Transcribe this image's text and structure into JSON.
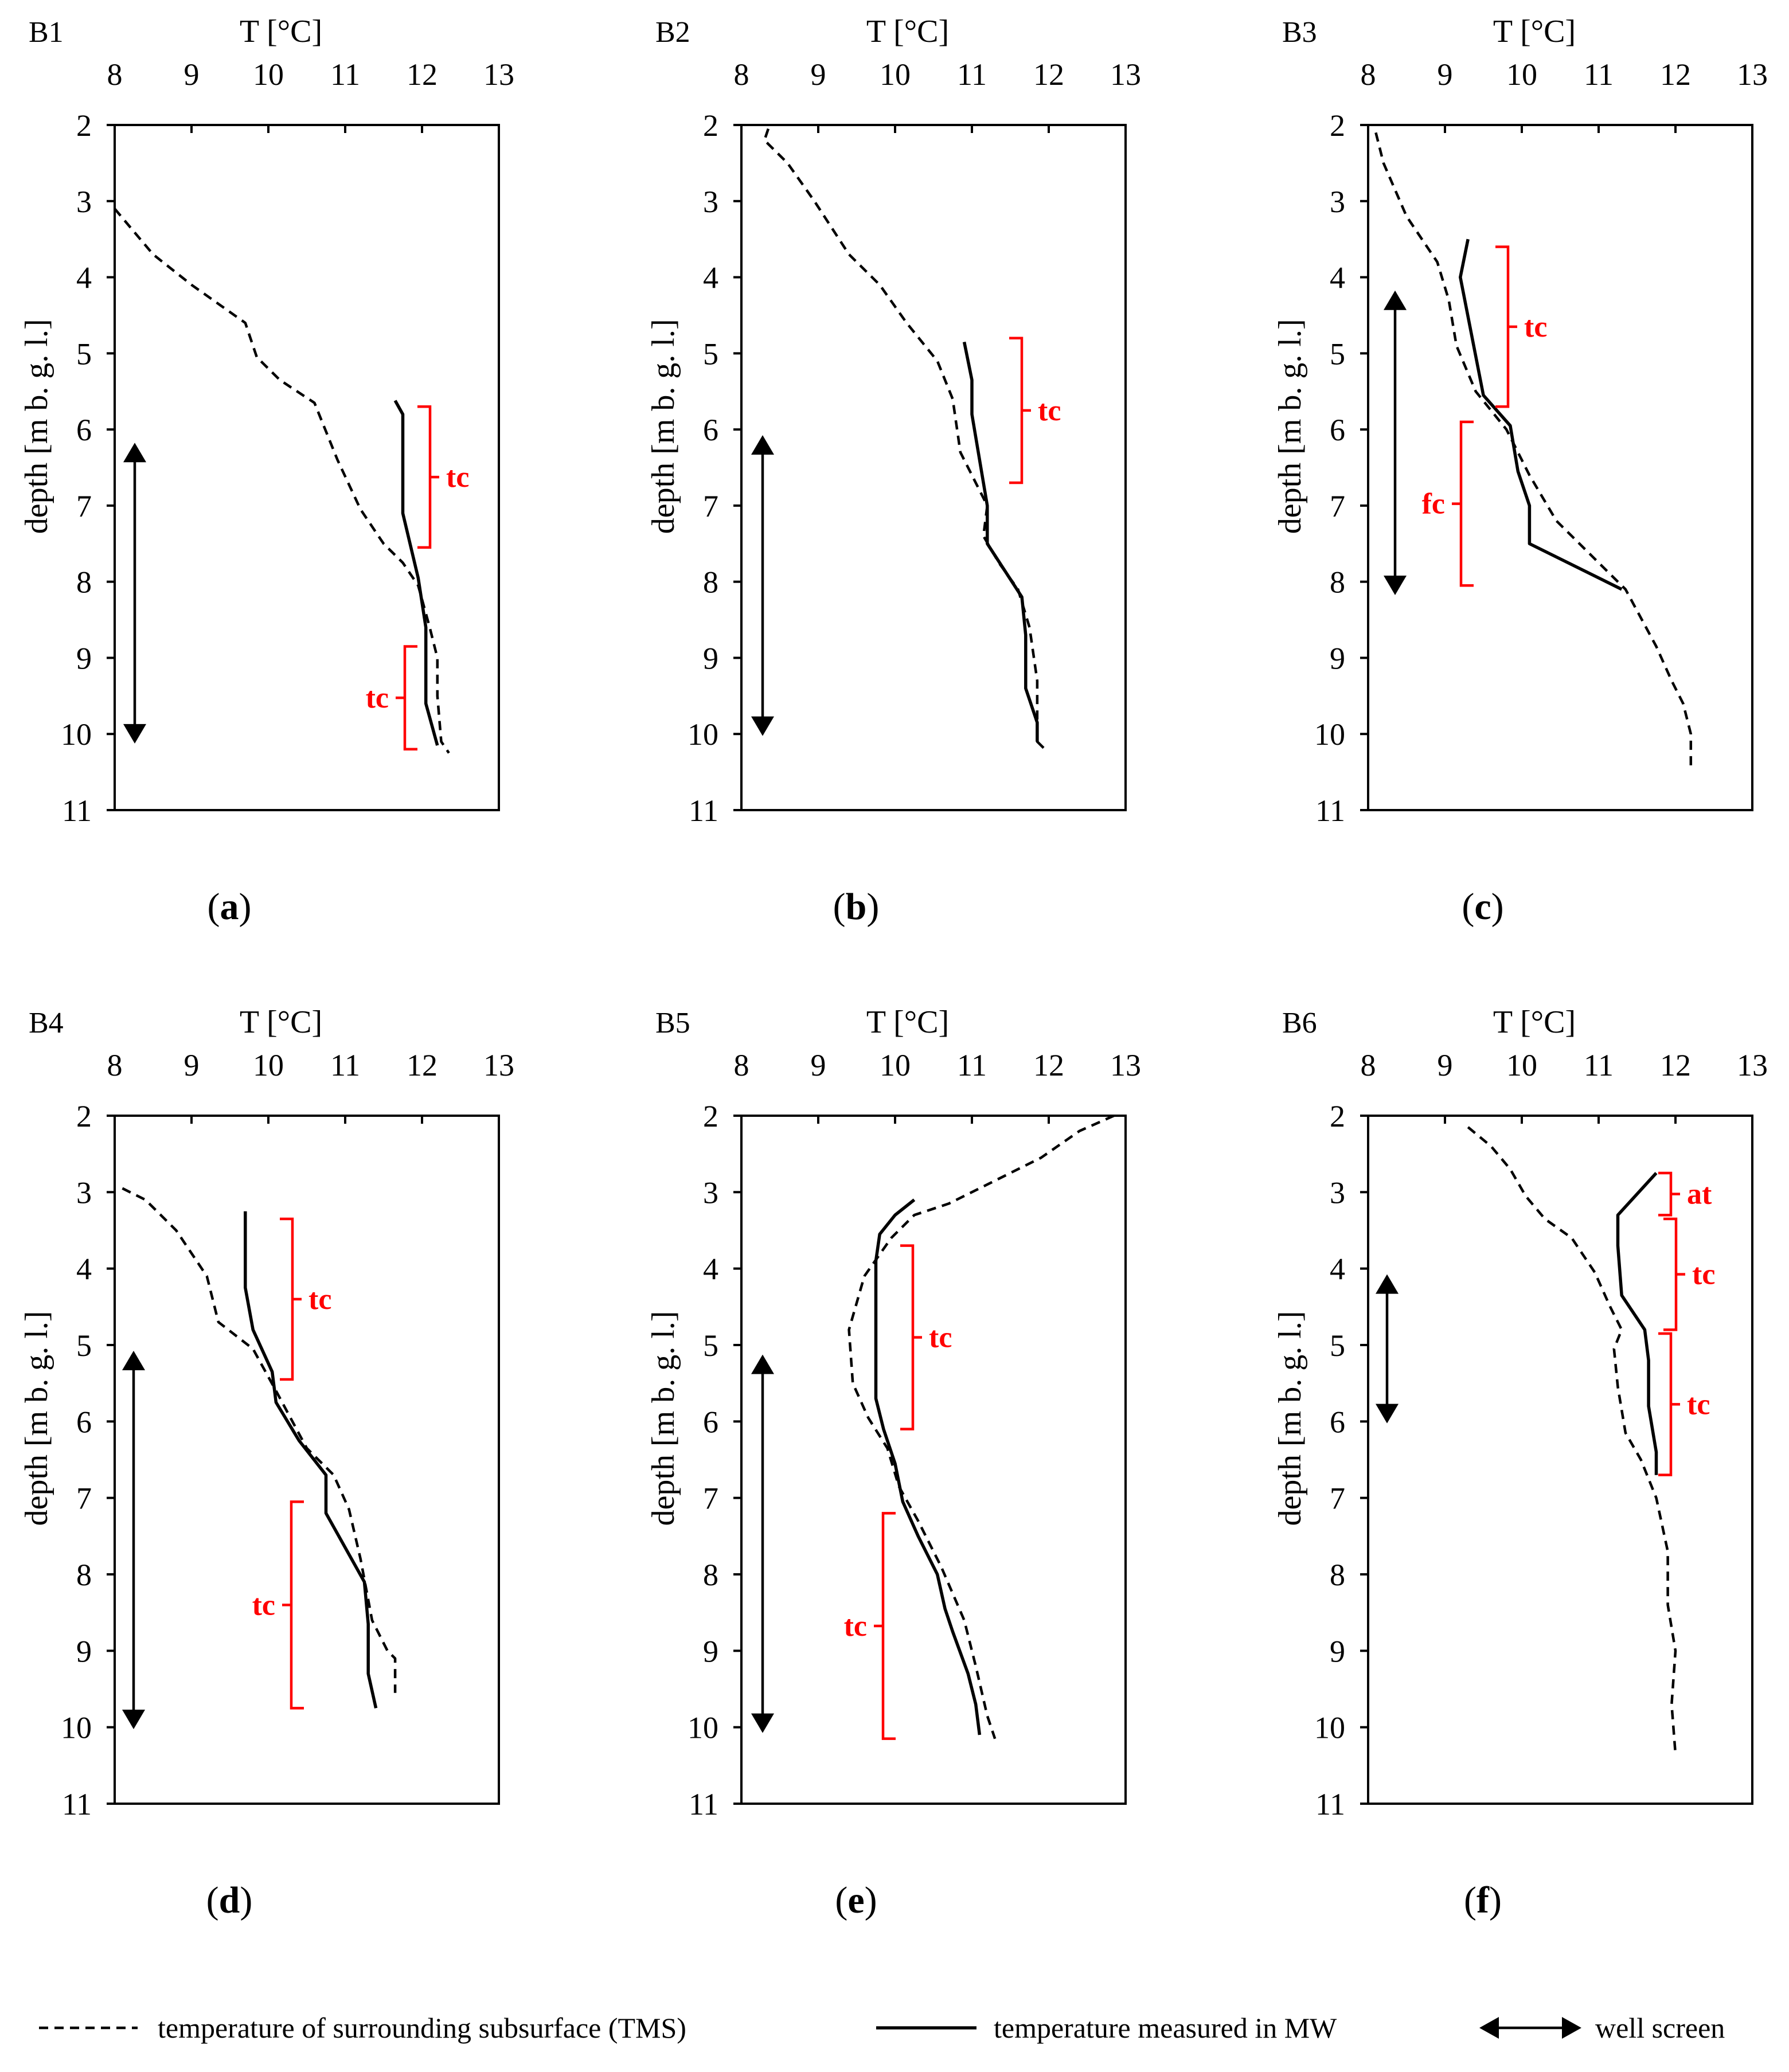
{
  "chart_data": [
    {
      "type": "line",
      "panel": "B1",
      "caption": "a",
      "xlabel": "T [°C]",
      "ylabel": "depth [m  b. g. l.]",
      "xlim": [
        8,
        13
      ],
      "ylim": [
        2,
        11
      ],
      "xticks": [
        "8",
        "9",
        "10",
        "11",
        "12",
        "13"
      ],
      "yticks": [
        "2",
        "3",
        "4",
        "5",
        "6",
        "7",
        "8",
        "9",
        "10",
        "11"
      ],
      "series": [
        {
          "name": "temperature of surrounding subsurface (TMS)",
          "style": "dashed",
          "points": [
            [
              8.0,
              3.1
            ],
            [
              8.5,
              3.7
            ],
            [
              9.0,
              4.1
            ],
            [
              9.7,
              4.6
            ],
            [
              9.85,
              5.05
            ],
            [
              10.15,
              5.35
            ],
            [
              10.6,
              5.65
            ],
            [
              10.9,
              6.4
            ],
            [
              11.2,
              7.05
            ],
            [
              11.5,
              7.5
            ],
            [
              11.75,
              7.75
            ],
            [
              11.95,
              8.05
            ],
            [
              12.1,
              8.6
            ],
            [
              12.2,
              9.0
            ],
            [
              12.2,
              9.5
            ],
            [
              12.25,
              10.1
            ],
            [
              12.35,
              10.25
            ]
          ]
        },
        {
          "name": "temperature measured in MW",
          "style": "solid",
          "points": [
            [
              11.65,
              5.62
            ],
            [
              11.75,
              5.8
            ],
            [
              11.75,
              7.1
            ],
            [
              11.95,
              7.95
            ],
            [
              12.05,
              8.6
            ],
            [
              12.05,
              9.6
            ],
            [
              12.2,
              10.15
            ]
          ]
        }
      ],
      "well_screen": [
        6.25,
        10.05
      ],
      "annotations": [
        {
          "label": "tc",
          "range": [
            5.7,
            7.55
          ],
          "side": "right"
        },
        {
          "label": "tc",
          "range": [
            8.85,
            10.2
          ],
          "side": "left"
        }
      ]
    },
    {
      "type": "line",
      "panel": "B2",
      "caption": "b",
      "xlabel": "T [°C]",
      "ylabel": "depth [m  b. g. l.]",
      "xlim": [
        8,
        13
      ],
      "ylim": [
        2,
        11
      ],
      "xticks": [
        "8",
        "9",
        "10",
        "11",
        "12",
        "13"
      ],
      "yticks": [
        "2",
        "3",
        "4",
        "5",
        "6",
        "7",
        "8",
        "9",
        "10",
        "11"
      ],
      "series": [
        {
          "name": "temperature of surrounding subsurface (TMS)",
          "style": "dashed",
          "points": [
            [
              8.35,
              2.05
            ],
            [
              8.3,
              2.2
            ],
            [
              8.6,
              2.5
            ],
            [
              8.95,
              3.0
            ],
            [
              9.4,
              3.7
            ],
            [
              9.8,
              4.1
            ],
            [
              10.15,
              4.6
            ],
            [
              10.55,
              5.1
            ],
            [
              10.75,
              5.6
            ],
            [
              10.85,
              6.3
            ],
            [
              11.05,
              6.7
            ],
            [
              11.2,
              7.0
            ],
            [
              11.15,
              7.4
            ],
            [
              11.35,
              7.75
            ],
            [
              11.6,
              8.1
            ],
            [
              11.75,
              8.6
            ],
            [
              11.85,
              9.3
            ],
            [
              11.85,
              10.1
            ],
            [
              11.95,
              10.2
            ]
          ]
        },
        {
          "name": "temperature measured in MW",
          "style": "solid",
          "points": [
            [
              10.9,
              4.85
            ],
            [
              11.0,
              5.35
            ],
            [
              11.0,
              5.8
            ],
            [
              11.2,
              7.0
            ],
            [
              11.2,
              7.5
            ],
            [
              11.65,
              8.2
            ],
            [
              11.7,
              8.7
            ],
            [
              11.7,
              9.4
            ],
            [
              11.85,
              9.85
            ],
            [
              11.85,
              10.1
            ]
          ]
        }
      ],
      "well_screen": [
        6.15,
        9.95
      ],
      "annotations": [
        {
          "label": "tc",
          "range": [
            4.8,
            6.7
          ],
          "side": "right"
        }
      ]
    },
    {
      "type": "line",
      "panel": "B3",
      "caption": "c",
      "xlabel": "T [°C]",
      "ylabel": "depth [m  b. g. l.]",
      "xlim": [
        8,
        13
      ],
      "ylim": [
        2,
        11
      ],
      "xticks": [
        "8",
        "9",
        "10",
        "11",
        "12",
        "13"
      ],
      "yticks": [
        "2",
        "3",
        "4",
        "5",
        "6",
        "7",
        "8",
        "9",
        "10",
        "11"
      ],
      "series": [
        {
          "name": "temperature of surrounding subsurface (TMS)",
          "style": "dashed",
          "points": [
            [
              8.1,
              2.1
            ],
            [
              8.2,
              2.5
            ],
            [
              8.5,
              3.2
            ],
            [
              8.9,
              3.8
            ],
            [
              9.05,
              4.3
            ],
            [
              9.15,
              4.9
            ],
            [
              9.4,
              5.5
            ],
            [
              9.8,
              6.0
            ],
            [
              10.1,
              6.6
            ],
            [
              10.45,
              7.2
            ],
            [
              10.95,
              7.7
            ],
            [
              11.35,
              8.1
            ],
            [
              11.75,
              8.85
            ],
            [
              11.95,
              9.3
            ],
            [
              12.1,
              9.6
            ],
            [
              12.2,
              10.0
            ],
            [
              12.2,
              10.45
            ]
          ]
        },
        {
          "name": "temperature measured in MW",
          "style": "solid",
          "points": [
            [
              9.3,
              3.5
            ],
            [
              9.2,
              4.0
            ],
            [
              9.5,
              5.55
            ],
            [
              9.85,
              5.95
            ],
            [
              9.95,
              6.55
            ],
            [
              10.1,
              7.0
            ],
            [
              10.1,
              7.5
            ],
            [
              11.3,
              8.1
            ]
          ]
        }
      ],
      "well_screen": [
        4.25,
        8.1
      ],
      "annotations": [
        {
          "label": "tc",
          "range": [
            3.6,
            5.7
          ],
          "side": "right"
        },
        {
          "label": "fc",
          "range": [
            5.9,
            8.05
          ],
          "side": "left"
        }
      ]
    },
    {
      "type": "line",
      "panel": "B4",
      "caption": "d",
      "xlabel": "T [°C]",
      "ylabel": "depth [m  b. g. l.]",
      "xlim": [
        8,
        13
      ],
      "ylim": [
        2,
        11
      ],
      "xticks": [
        "8",
        "9",
        "10",
        "11",
        "12",
        "13"
      ],
      "yticks": [
        "2",
        "3",
        "4",
        "5",
        "6",
        "7",
        "8",
        "9",
        "10",
        "11"
      ],
      "series": [
        {
          "name": "temperature of surrounding subsurface (TMS)",
          "style": "dashed",
          "points": [
            [
              8.1,
              2.95
            ],
            [
              8.4,
              3.1
            ],
            [
              8.8,
              3.5
            ],
            [
              9.2,
              4.1
            ],
            [
              9.35,
              4.7
            ],
            [
              9.8,
              5.05
            ],
            [
              10.1,
              5.6
            ],
            [
              10.5,
              6.35
            ],
            [
              10.85,
              6.7
            ],
            [
              11.05,
              7.15
            ],
            [
              11.2,
              7.8
            ],
            [
              11.35,
              8.6
            ],
            [
              11.55,
              9.0
            ],
            [
              11.65,
              9.1
            ],
            [
              11.65,
              9.55
            ]
          ]
        },
        {
          "name": "temperature measured in MW",
          "style": "solid",
          "points": [
            [
              9.7,
              3.25
            ],
            [
              9.7,
              4.25
            ],
            [
              9.8,
              4.8
            ],
            [
              10.05,
              5.35
            ],
            [
              10.1,
              5.75
            ],
            [
              10.4,
              6.25
            ],
            [
              10.75,
              6.7
            ],
            [
              10.75,
              7.2
            ],
            [
              11.25,
              8.1
            ],
            [
              11.3,
              8.65
            ],
            [
              11.3,
              9.3
            ],
            [
              11.4,
              9.75
            ]
          ]
        }
      ],
      "well_screen": [
        5.15,
        9.95
      ],
      "annotations": [
        {
          "label": "tc",
          "range": [
            3.35,
            5.45
          ],
          "side": "right"
        },
        {
          "label": "tc",
          "range": [
            7.05,
            9.75
          ],
          "side": "left"
        }
      ]
    },
    {
      "type": "line",
      "panel": "B5",
      "caption": "e",
      "xlabel": "T [°C]",
      "ylabel": "depth [m  b. g. l.]",
      "xlim": [
        8,
        13
      ],
      "ylim": [
        2,
        11
      ],
      "xticks": [
        "8",
        "9",
        "10",
        "11",
        "12",
        "13"
      ],
      "yticks": [
        "2",
        "3",
        "4",
        "5",
        "6",
        "7",
        "8",
        "9",
        "10",
        "11"
      ],
      "series": [
        {
          "name": "temperature of surrounding subsurface (TMS)",
          "style": "dashed",
          "points": [
            [
              12.85,
              2.0
            ],
            [
              12.4,
              2.2
            ],
            [
              11.9,
              2.55
            ],
            [
              11.2,
              2.9
            ],
            [
              10.7,
              3.15
            ],
            [
              10.25,
              3.3
            ],
            [
              9.95,
              3.6
            ],
            [
              9.6,
              4.1
            ],
            [
              9.4,
              4.8
            ],
            [
              9.45,
              5.5
            ],
            [
              9.65,
              5.95
            ],
            [
              9.9,
              6.35
            ],
            [
              10.05,
              6.85
            ],
            [
              10.3,
              7.3
            ],
            [
              10.6,
              7.9
            ],
            [
              10.9,
              8.6
            ],
            [
              11.05,
              9.2
            ],
            [
              11.2,
              9.85
            ],
            [
              11.3,
              10.15
            ]
          ]
        },
        {
          "name": "temperature measured in MW",
          "style": "solid",
          "points": [
            [
              10.25,
              3.1
            ],
            [
              10.0,
              3.3
            ],
            [
              9.8,
              3.55
            ],
            [
              9.75,
              3.9
            ],
            [
              9.75,
              4.5
            ],
            [
              9.75,
              5.7
            ],
            [
              9.85,
              6.1
            ],
            [
              10.0,
              6.55
            ],
            [
              10.1,
              7.05
            ],
            [
              10.3,
              7.5
            ],
            [
              10.55,
              8.0
            ],
            [
              10.65,
              8.45
            ],
            [
              10.75,
              8.75
            ],
            [
              10.95,
              9.3
            ],
            [
              11.05,
              9.7
            ],
            [
              11.1,
              10.1
            ]
          ]
        }
      ],
      "well_screen": [
        5.2,
        10.0
      ],
      "annotations": [
        {
          "label": "tc",
          "range": [
            3.7,
            6.1
          ],
          "side": "right"
        },
        {
          "label": "tc",
          "range": [
            7.2,
            10.15
          ],
          "side": "left"
        }
      ]
    },
    {
      "type": "line",
      "panel": "B6",
      "caption": "f",
      "xlabel": "T [°C]",
      "ylabel": "depth [m  b. g. l.]",
      "xlim": [
        8,
        13
      ],
      "ylim": [
        2,
        11
      ],
      "xticks": [
        "8",
        "9",
        "10",
        "11",
        "12",
        "13"
      ],
      "yticks": [
        "2",
        "3",
        "4",
        "5",
        "6",
        "7",
        "8",
        "9",
        "10",
        "11"
      ],
      "series": [
        {
          "name": "temperature of surrounding subsurface (TMS)",
          "style": "dashed",
          "points": [
            [
              9.3,
              2.15
            ],
            [
              9.6,
              2.4
            ],
            [
              9.85,
              2.7
            ],
            [
              10.05,
              3.05
            ],
            [
              10.3,
              3.35
            ],
            [
              10.65,
              3.6
            ],
            [
              10.95,
              4.05
            ],
            [
              11.15,
              4.5
            ],
            [
              11.3,
              4.8
            ],
            [
              11.2,
              5.05
            ],
            [
              11.25,
              5.55
            ],
            [
              11.35,
              6.15
            ],
            [
              11.55,
              6.5
            ],
            [
              11.75,
              7.0
            ],
            [
              11.9,
              7.7
            ],
            [
              11.9,
              8.4
            ],
            [
              12.0,
              9.0
            ],
            [
              11.95,
              9.7
            ],
            [
              12.0,
              10.35
            ]
          ]
        },
        {
          "name": "temperature measured in MW",
          "style": "solid",
          "points": [
            [
              11.75,
              2.75
            ],
            [
              11.25,
              3.3
            ],
            [
              11.25,
              3.7
            ],
            [
              11.3,
              4.35
            ],
            [
              11.6,
              4.8
            ],
            [
              11.65,
              5.2
            ],
            [
              11.65,
              5.8
            ],
            [
              11.75,
              6.4
            ],
            [
              11.75,
              6.7
            ]
          ]
        }
      ],
      "well_screen": [
        4.15,
        5.95
      ],
      "annotations": [
        {
          "label": "at",
          "range": [
            2.75,
            3.3
          ],
          "side": "right"
        },
        {
          "label": "tc",
          "range": [
            3.35,
            4.8
          ],
          "side": "right"
        },
        {
          "label": "tc",
          "range": [
            4.85,
            6.7
          ],
          "side": "right"
        }
      ]
    }
  ],
  "colors": {
    "annotation": "#ff0000",
    "lines": "#000000"
  },
  "legend": {
    "items": [
      {
        "style": "dashed",
        "label": "temperature of surrounding subsurface (TMS)"
      },
      {
        "style": "solid",
        "label": "temperature measured in MW"
      },
      {
        "style": "arrow",
        "label": "well screen"
      }
    ]
  }
}
